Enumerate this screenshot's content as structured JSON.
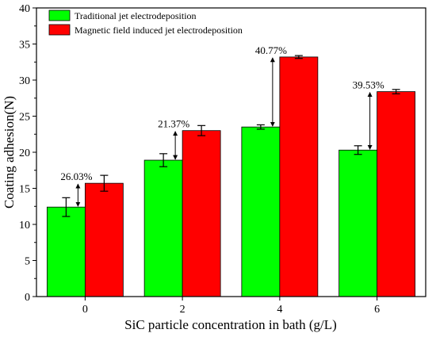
{
  "chart_data": {
    "type": "bar",
    "xlabel": "SiC particle concentration in bath (g/L)",
    "ylabel": "Coating adhesion(N)",
    "ylim": [
      0,
      40
    ],
    "yticks": [
      "0",
      "5",
      "10",
      "15",
      "20",
      "25",
      "30",
      "35",
      "40"
    ],
    "categories": [
      "0",
      "2",
      "4",
      "6"
    ],
    "series": [
      {
        "name": "Traditional jet electrodeposition",
        "color": "#00ff00",
        "values": [
          12.4,
          18.9,
          23.5,
          20.3
        ],
        "errors": [
          1.3,
          0.9,
          0.3,
          0.6
        ]
      },
      {
        "name": "Magnetic field induced jet electrodeposition",
        "color": "#ff0000",
        "values": [
          15.7,
          23.0,
          33.2,
          28.4
        ],
        "errors": [
          1.1,
          0.7,
          0.2,
          0.3
        ]
      }
    ],
    "annotations": [
      "26.03%",
      "21.37%",
      "40.77%",
      "39.53%"
    ],
    "legend_position": "top-left",
    "grid": false
  }
}
